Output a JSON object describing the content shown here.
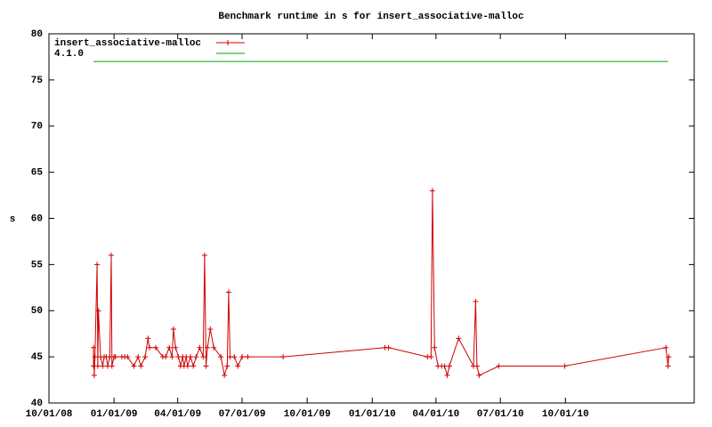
{
  "chart_data": {
    "type": "line",
    "title": "Benchmark runtime in s for insert_associative-malloc",
    "y_label": "s",
    "xlim": [
      "2008-10-01",
      "2011-04-01"
    ],
    "xticks": [
      {
        "value": "2008-10-01",
        "label": "10/01/08"
      },
      {
        "value": "2009-01-01",
        "label": "01/01/09"
      },
      {
        "value": "2009-04-01",
        "label": "04/01/09"
      },
      {
        "value": "2009-07-01",
        "label": "07/01/09"
      },
      {
        "value": "2009-10-01",
        "label": "10/01/09"
      },
      {
        "value": "2010-01-01",
        "label": "01/01/10"
      },
      {
        "value": "2010-04-01",
        "label": "04/01/10"
      },
      {
        "value": "2010-07-01",
        "label": "07/01/10"
      },
      {
        "value": "2010-10-01",
        "label": "10/01/10"
      }
    ],
    "ylim": [
      40,
      80
    ],
    "yticks": [
      40,
      45,
      50,
      55,
      60,
      65,
      70,
      75,
      80
    ],
    "legend": "top-left",
    "series": [
      {
        "name": "insert_associative-malloc",
        "color": "#d00000",
        "x": [
          "2008-12-03",
          "2008-12-03",
          "2008-12-04",
          "2008-12-05",
          "2008-12-08",
          "2008-12-09",
          "2008-12-10",
          "2008-12-13",
          "2008-12-16",
          "2008-12-18",
          "2008-12-21",
          "2008-12-23",
          "2008-12-26",
          "2008-12-28",
          "2008-12-29",
          "2009-01-01",
          "2009-01-03",
          "2009-01-12",
          "2009-01-16",
          "2009-01-20",
          "2009-01-29",
          "2009-02-04",
          "2009-02-08",
          "2009-02-14",
          "2009-02-18",
          "2009-02-20",
          "2009-03-01",
          "2009-03-11",
          "2009-03-15",
          "2009-03-20",
          "2009-03-24",
          "2009-03-26",
          "2009-03-29",
          "2009-04-02",
          "2009-04-05",
          "2009-04-08",
          "2009-04-10",
          "2009-04-13",
          "2009-04-15",
          "2009-04-19",
          "2009-04-23",
          "2009-04-27",
          "2009-05-02",
          "2009-05-07",
          "2009-05-09",
          "2009-05-11",
          "2009-05-13",
          "2009-05-17",
          "2009-05-22",
          "2009-06-01",
          "2009-06-06",
          "2009-06-10",
          "2009-06-12",
          "2009-06-14",
          "2009-06-20",
          "2009-06-25",
          "2009-07-01",
          "2009-07-09",
          "2009-08-28",
          "2010-01-19",
          "2010-01-24",
          "2010-03-20",
          "2010-03-25",
          "2010-03-27",
          "2010-03-30",
          "2010-04-04",
          "2010-04-09",
          "2010-04-13",
          "2010-04-17",
          "2010-04-20",
          "2010-05-03",
          "2010-05-24",
          "2010-05-27",
          "2010-05-29",
          "2010-06-01",
          "2010-06-29",
          "2010-09-30",
          "2011-02-20",
          "2011-02-23",
          "2011-02-24"
        ],
        "values": [
          44,
          46,
          43,
          45,
          55,
          44,
          50,
          45,
          44,
          45,
          45,
          44,
          45,
          56,
          44,
          45,
          45,
          45,
          45,
          45,
          44,
          45,
          44,
          45,
          47,
          46,
          46,
          45,
          45,
          46,
          45,
          48,
          46,
          45,
          44,
          45,
          44,
          45,
          44,
          45,
          44,
          45,
          46,
          45,
          56,
          44,
          46,
          48,
          46,
          45,
          43,
          44,
          52,
          45,
          45,
          44,
          45,
          45,
          45,
          46,
          46,
          45,
          45,
          63,
          46,
          44,
          44,
          44,
          43,
          44,
          47,
          44,
          51,
          44,
          43,
          44,
          44,
          46,
          44,
          45
        ]
      },
      {
        "name": "4.1.0",
        "color": "#00a000",
        "x": [
          "2008-12-03",
          "2011-02-23"
        ],
        "values": [
          77,
          77
        ]
      }
    ]
  }
}
